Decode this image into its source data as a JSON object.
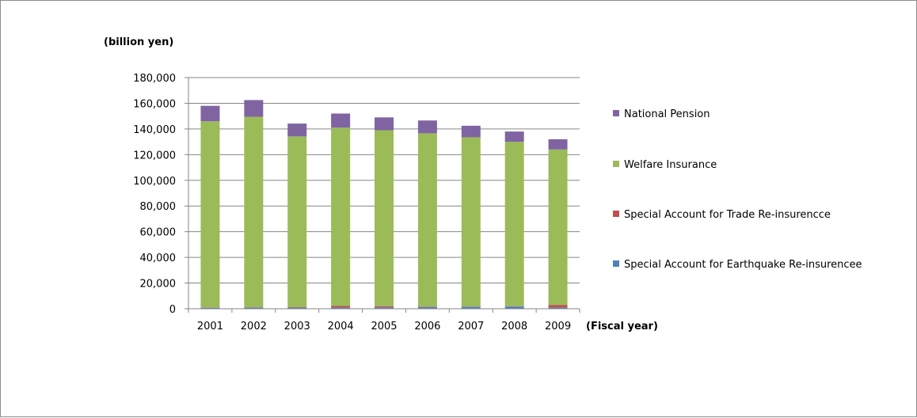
{
  "chart_data": {
    "type": "bar",
    "stacked": true,
    "ylabel": "(billion yen)",
    "xlabel": "(Fiscal year)",
    "ylim": [
      0,
      180000
    ],
    "y_ticks": [
      "180,000",
      "160,000",
      "140,000",
      "120,000",
      "100,000",
      "80,000",
      "60,000",
      "40,000",
      "20,000",
      "0"
    ],
    "y_tick_values": [
      180000,
      160000,
      140000,
      120000,
      100000,
      80000,
      60000,
      40000,
      20000,
      0
    ],
    "grid": true,
    "legend_position": "right",
    "categories": [
      "2001",
      "2002",
      "2003",
      "2004",
      "2005",
      "2006",
      "2007",
      "2008",
      "2009"
    ],
    "series": [
      {
        "name": "Special Account for Earthquake Re-insurencee",
        "color": "#4f81bd",
        "values": [
          800,
          900,
          900,
          1000,
          1100,
          1300,
          1500,
          1700,
          1000
        ]
      },
      {
        "name": "Special Account for Trade  Re-insurencce",
        "color": "#c0504d",
        "values": [
          200,
          200,
          300,
          1200,
          900,
          300,
          200,
          300,
          2000
        ]
      },
      {
        "name": "Welfare Insurance",
        "color": "#9bbb59",
        "values": [
          145000,
          148400,
          133000,
          138800,
          137000,
          135000,
          131800,
          128000,
          121000
        ]
      },
      {
        "name": "National Pension",
        "color": "#8064a2",
        "values": [
          12000,
          13000,
          10000,
          11000,
          10000,
          10000,
          9000,
          8000,
          8000
        ]
      }
    ]
  }
}
